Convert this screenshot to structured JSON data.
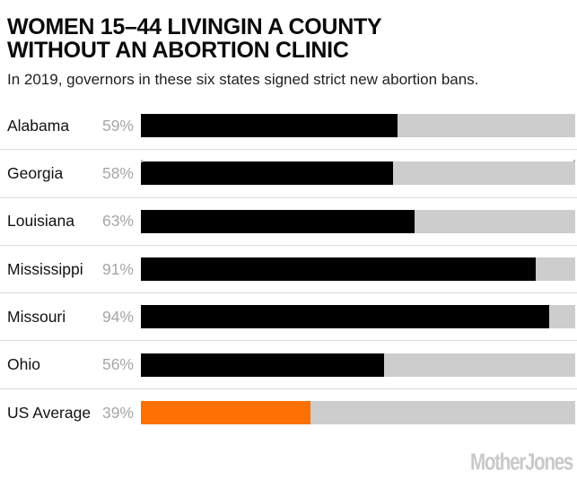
{
  "header": {
    "title_line1": "WOMEN 15–44 LIVINGIN A COUNTY",
    "title_line2": "WITHOUT AN ABORTION CLINIC",
    "subtitle": "In 2019, governors in these six states signed strict new abortion bans."
  },
  "chart_data": {
    "type": "bar",
    "orientation": "horizontal",
    "title": "WOMEN 15–44 LIVINGIN A COUNTY WITHOUT AN ABORTION CLINIC",
    "subtitle": "In 2019, governors in these six states signed strict new abortion bans.",
    "categories": [
      "Alabama",
      "Georgia",
      "Louisiana",
      "Mississippi",
      "Missouri",
      "Ohio",
      "US Average"
    ],
    "values": [
      59,
      58,
      63,
      91,
      94,
      56,
      39
    ],
    "value_labels": [
      "59%",
      "58%",
      "63%",
      "91%",
      "94%",
      "56%",
      "39%"
    ],
    "unit": "%",
    "xlim": [
      0,
      100
    ],
    "grid": false,
    "legend": null,
    "bar_color_default": "#000000",
    "highlight_category": "US Average",
    "highlight_color": "#fd7104",
    "track_color": "#cdcdcd"
  },
  "footer": {
    "brand": "MotherJones"
  }
}
